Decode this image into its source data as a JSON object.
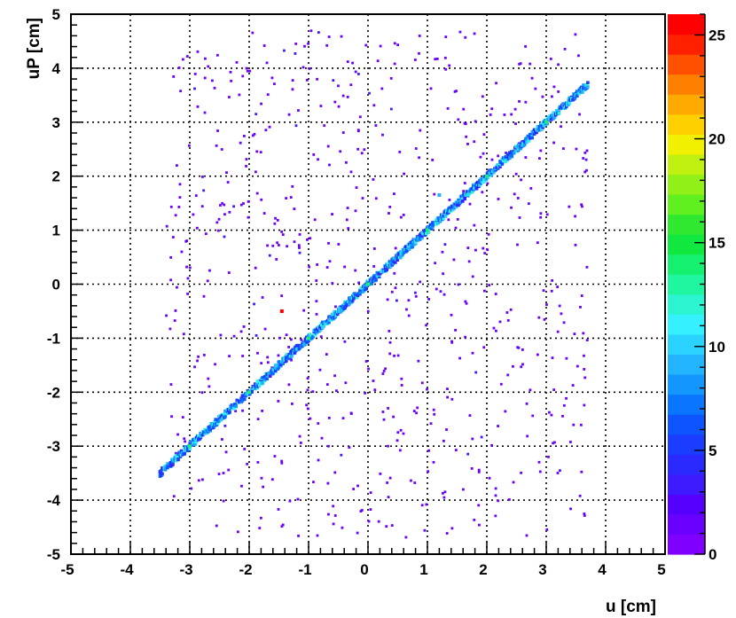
{
  "chart_data": {
    "type": "heatmap",
    "xlabel": "u [cm]",
    "ylabel": "uP [cm]",
    "xlim": [
      -5,
      5
    ],
    "ylim": [
      -5,
      5
    ],
    "x_ticks": [
      "-5",
      "-4",
      "-3",
      "-2",
      "-1",
      "0",
      "1",
      "2",
      "3",
      "4",
      "5"
    ],
    "y_ticks": [
      "-5",
      "-4",
      "-3",
      "-2",
      "-1",
      "0",
      "1",
      "2",
      "3",
      "4",
      "5"
    ],
    "grid": true,
    "colorbar": {
      "range": [
        0,
        26
      ],
      "ticks": [
        "0",
        "5",
        "10",
        "15",
        "20",
        "25"
      ],
      "colors": [
        "#7f00ff",
        "#6a00ff",
        "#5500ff",
        "#3d1aff",
        "#2a2aff",
        "#1a3dff",
        "#0f55ff",
        "#0a75ff",
        "#1496ff",
        "#22b4ff",
        "#2ad2ff",
        "#35f0ff",
        "#2af5d0",
        "#20f5a0",
        "#16f070",
        "#10e840",
        "#30e830",
        "#60f020",
        "#90f018",
        "#c0f010",
        "#f0f000",
        "#ffd000",
        "#ffaa00",
        "#ff8000",
        "#ff5000",
        "#ff2000",
        "#ff0000"
      ]
    },
    "diagonal_band": {
      "x_range": [
        -3.5,
        3.7
      ],
      "relation": "uP = u",
      "peak_points": [
        {
          "x": -3.0,
          "y": -3.0
        },
        {
          "x": -2.0,
          "y": -2.0
        },
        {
          "x": -1.0,
          "y": -1.0
        },
        {
          "x": 0.0,
          "y": 0.0
        },
        {
          "x": 1.0,
          "y": 1.0
        },
        {
          "x": 2.0,
          "y": 2.0
        },
        {
          "x": 3.0,
          "y": 3.0
        }
      ]
    },
    "background": {
      "description_x_range": [
        -3.4,
        3.7
      ],
      "description_y_range": [
        -4.7,
        4.7
      ],
      "count": 650,
      "value": 1
    }
  }
}
